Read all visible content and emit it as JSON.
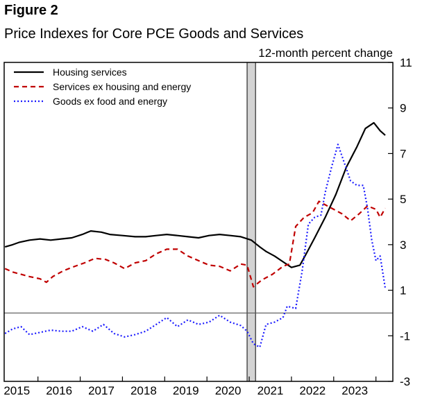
{
  "figure_label": "Figure 2",
  "chart_data": {
    "type": "line",
    "title": "Price Indexes for Core PCE Goods and Services",
    "ylabel": "12-month percent change",
    "xlabel": "",
    "x_tick_labels": [
      "2015",
      "2016",
      "2017",
      "2018",
      "2019",
      "2020",
      "2021",
      "2022",
      "2023"
    ],
    "xlim": [
      2014.4,
      2023.6
    ],
    "ylim": [
      -3,
      11
    ],
    "y_ticks": [
      -3,
      -1,
      1,
      3,
      5,
      7,
      9,
      11
    ],
    "zero_line": 0,
    "recession_band": [
      2020.15,
      2020.35
    ],
    "legend_position": "top-left",
    "series": [
      {
        "name": "Housing services",
        "color": "#000000",
        "dash": "solid",
        "points": [
          [
            2014.42,
            2.9
          ],
          [
            2014.6,
            3.0
          ],
          [
            2014.75,
            3.1
          ],
          [
            2015.0,
            3.2
          ],
          [
            2015.25,
            3.25
          ],
          [
            2015.5,
            3.2
          ],
          [
            2015.75,
            3.25
          ],
          [
            2016.0,
            3.3
          ],
          [
            2016.25,
            3.45
          ],
          [
            2016.45,
            3.6
          ],
          [
            2016.7,
            3.55
          ],
          [
            2016.9,
            3.45
          ],
          [
            2017.2,
            3.4
          ],
          [
            2017.5,
            3.35
          ],
          [
            2017.75,
            3.35
          ],
          [
            2018.0,
            3.4
          ],
          [
            2018.25,
            3.45
          ],
          [
            2018.5,
            3.4
          ],
          [
            2018.75,
            3.35
          ],
          [
            2019.0,
            3.3
          ],
          [
            2019.25,
            3.4
          ],
          [
            2019.5,
            3.45
          ],
          [
            2019.75,
            3.4
          ],
          [
            2020.0,
            3.35
          ],
          [
            2020.25,
            3.2
          ],
          [
            2020.45,
            2.9
          ],
          [
            2020.6,
            2.7
          ],
          [
            2020.8,
            2.5
          ],
          [
            2021.0,
            2.25
          ],
          [
            2021.2,
            2.0
          ],
          [
            2021.4,
            2.1
          ],
          [
            2021.55,
            2.6
          ],
          [
            2021.75,
            3.3
          ],
          [
            2022.0,
            4.2
          ],
          [
            2022.25,
            5.2
          ],
          [
            2022.5,
            6.4
          ],
          [
            2022.75,
            7.3
          ],
          [
            2022.95,
            8.1
          ],
          [
            2023.15,
            8.35
          ],
          [
            2023.3,
            8.0
          ],
          [
            2023.42,
            7.8
          ]
        ]
      },
      {
        "name": "Services ex housing and energy",
        "color": "#c00000",
        "dash": "dashed",
        "points": [
          [
            2014.42,
            1.95
          ],
          [
            2014.6,
            1.8
          ],
          [
            2014.8,
            1.7
          ],
          [
            2015.0,
            1.6
          ],
          [
            2015.25,
            1.5
          ],
          [
            2015.4,
            1.35
          ],
          [
            2015.55,
            1.6
          ],
          [
            2015.8,
            1.85
          ],
          [
            2016.0,
            2.0
          ],
          [
            2016.3,
            2.2
          ],
          [
            2016.55,
            2.4
          ],
          [
            2016.8,
            2.35
          ],
          [
            2017.0,
            2.2
          ],
          [
            2017.25,
            1.95
          ],
          [
            2017.5,
            2.2
          ],
          [
            2017.75,
            2.3
          ],
          [
            2018.0,
            2.6
          ],
          [
            2018.25,
            2.8
          ],
          [
            2018.5,
            2.8
          ],
          [
            2018.75,
            2.5
          ],
          [
            2019.0,
            2.3
          ],
          [
            2019.25,
            2.1
          ],
          [
            2019.5,
            2.05
          ],
          [
            2019.75,
            1.85
          ],
          [
            2020.0,
            2.15
          ],
          [
            2020.15,
            2.1
          ],
          [
            2020.3,
            1.15
          ],
          [
            2020.5,
            1.45
          ],
          [
            2020.75,
            1.7
          ],
          [
            2021.0,
            2.05
          ],
          [
            2021.15,
            2.15
          ],
          [
            2021.3,
            3.8
          ],
          [
            2021.5,
            4.2
          ],
          [
            2021.7,
            4.4
          ],
          [
            2021.85,
            4.9
          ],
          [
            2022.0,
            4.75
          ],
          [
            2022.2,
            4.55
          ],
          [
            2022.4,
            4.35
          ],
          [
            2022.6,
            4.05
          ],
          [
            2022.8,
            4.35
          ],
          [
            2023.0,
            4.7
          ],
          [
            2023.2,
            4.55
          ],
          [
            2023.3,
            4.2
          ],
          [
            2023.42,
            4.6
          ]
        ]
      },
      {
        "name": "Goods ex food and energy",
        "color": "#1a1aff",
        "dash": "dotted",
        "points": [
          [
            2014.42,
            -0.9
          ],
          [
            2014.6,
            -0.7
          ],
          [
            2014.8,
            -0.6
          ],
          [
            2015.0,
            -0.95
          ],
          [
            2015.25,
            -0.85
          ],
          [
            2015.5,
            -0.75
          ],
          [
            2015.75,
            -0.8
          ],
          [
            2016.0,
            -0.8
          ],
          [
            2016.25,
            -0.6
          ],
          [
            2016.5,
            -0.8
          ],
          [
            2016.75,
            -0.5
          ],
          [
            2017.0,
            -0.9
          ],
          [
            2017.25,
            -1.05
          ],
          [
            2017.5,
            -0.95
          ],
          [
            2017.75,
            -0.8
          ],
          [
            2018.0,
            -0.5
          ],
          [
            2018.25,
            -0.2
          ],
          [
            2018.5,
            -0.6
          ],
          [
            2018.75,
            -0.3
          ],
          [
            2019.0,
            -0.5
          ],
          [
            2019.25,
            -0.4
          ],
          [
            2019.5,
            -0.1
          ],
          [
            2019.75,
            -0.4
          ],
          [
            2020.0,
            -0.55
          ],
          [
            2020.15,
            -0.8
          ],
          [
            2020.3,
            -1.35
          ],
          [
            2020.45,
            -1.5
          ],
          [
            2020.6,
            -0.5
          ],
          [
            2020.8,
            -0.4
          ],
          [
            2021.0,
            -0.2
          ],
          [
            2021.1,
            0.3
          ],
          [
            2021.3,
            0.2
          ],
          [
            2021.45,
            1.8
          ],
          [
            2021.6,
            3.9
          ],
          [
            2021.75,
            4.2
          ],
          [
            2021.9,
            4.3
          ],
          [
            2022.0,
            5.3
          ],
          [
            2022.15,
            6.4
          ],
          [
            2022.3,
            7.4
          ],
          [
            2022.45,
            6.6
          ],
          [
            2022.6,
            5.8
          ],
          [
            2022.75,
            5.6
          ],
          [
            2022.9,
            5.6
          ],
          [
            2023.0,
            4.6
          ],
          [
            2023.1,
            3.2
          ],
          [
            2023.2,
            2.3
          ],
          [
            2023.3,
            2.5
          ],
          [
            2023.42,
            1.1
          ]
        ]
      }
    ]
  }
}
